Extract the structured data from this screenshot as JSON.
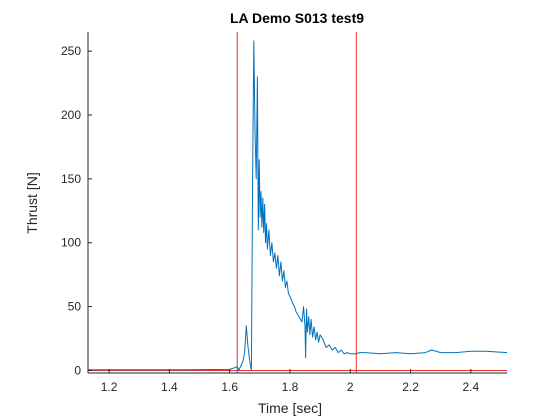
{
  "chart_data": {
    "type": "line",
    "title": "LA Demo S013 test9",
    "xlabel": "Time [sec]",
    "ylabel": "Thrust [N]",
    "xlim": [
      1.13,
      2.52
    ],
    "ylim": [
      -2,
      265
    ],
    "x_ticks": [
      1.2,
      1.4,
      1.6,
      1.8,
      2.0,
      2.2,
      2.4
    ],
    "x_tick_labels": [
      "1.2",
      "1.4",
      "1.6",
      "1.8",
      "2",
      "2.2",
      "2.4"
    ],
    "y_ticks": [
      0,
      50,
      100,
      150,
      200,
      250
    ],
    "y_tick_labels": [
      "0",
      "50",
      "100",
      "150",
      "200",
      "250"
    ],
    "grid": false,
    "colors": {
      "series": "#0072BD",
      "markers": "#E8302A",
      "axis": "#262626"
    },
    "vertical_lines": [
      1.625,
      2.02
    ],
    "horizontal_lines": [
      0
    ],
    "series": [
      {
        "x": [
          1.13,
          1.3,
          1.45,
          1.6,
          1.615,
          1.625,
          1.63,
          1.64,
          1.645,
          1.65,
          1.655,
          1.66,
          1.665,
          1.668,
          1.672,
          1.676,
          1.68,
          1.684,
          1.688,
          1.692,
          1.695,
          1.698,
          1.701,
          1.704,
          1.707,
          1.71,
          1.713,
          1.716,
          1.719,
          1.722,
          1.725,
          1.73,
          1.735,
          1.74,
          1.745,
          1.75,
          1.755,
          1.76,
          1.765,
          1.77,
          1.775,
          1.78,
          1.785,
          1.79,
          1.795,
          1.8,
          1.805,
          1.81,
          1.815,
          1.82,
          1.825,
          1.83,
          1.835,
          1.84,
          1.845,
          1.85,
          1.852,
          1.855,
          1.858,
          1.862,
          1.866,
          1.87,
          1.875,
          1.88,
          1.885,
          1.89,
          1.895,
          1.9,
          1.91,
          1.92,
          1.93,
          1.94,
          1.95,
          1.96,
          1.97,
          1.98,
          1.99,
          2.0,
          2.01,
          2.02,
          2.03,
          2.05,
          2.1,
          2.15,
          2.2,
          2.25,
          2.27,
          2.3,
          2.35,
          2.4,
          2.45,
          2.52
        ],
        "y": [
          0.5,
          0.5,
          0.5,
          0.8,
          2,
          3,
          0,
          5,
          8,
          15,
          35,
          20,
          10,
          5,
          0,
          150,
          258,
          188,
          150,
          230,
          110,
          165,
          120,
          140,
          112,
          135,
          108,
          130,
          100,
          115,
          95,
          110,
          90,
          100,
          85,
          92,
          80,
          90,
          74,
          85,
          70,
          78,
          65,
          70,
          60,
          58,
          55,
          52,
          50,
          46,
          44,
          42,
          40,
          38,
          50,
          35,
          10,
          48,
          30,
          42,
          28,
          40,
          26,
          34,
          24,
          30,
          22,
          28,
          24,
          18,
          20,
          16,
          18,
          14,
          16,
          13,
          14,
          13,
          13,
          13,
          14,
          14,
          13,
          14,
          13,
          14,
          16,
          14,
          14,
          15,
          15,
          14
        ]
      }
    ]
  }
}
